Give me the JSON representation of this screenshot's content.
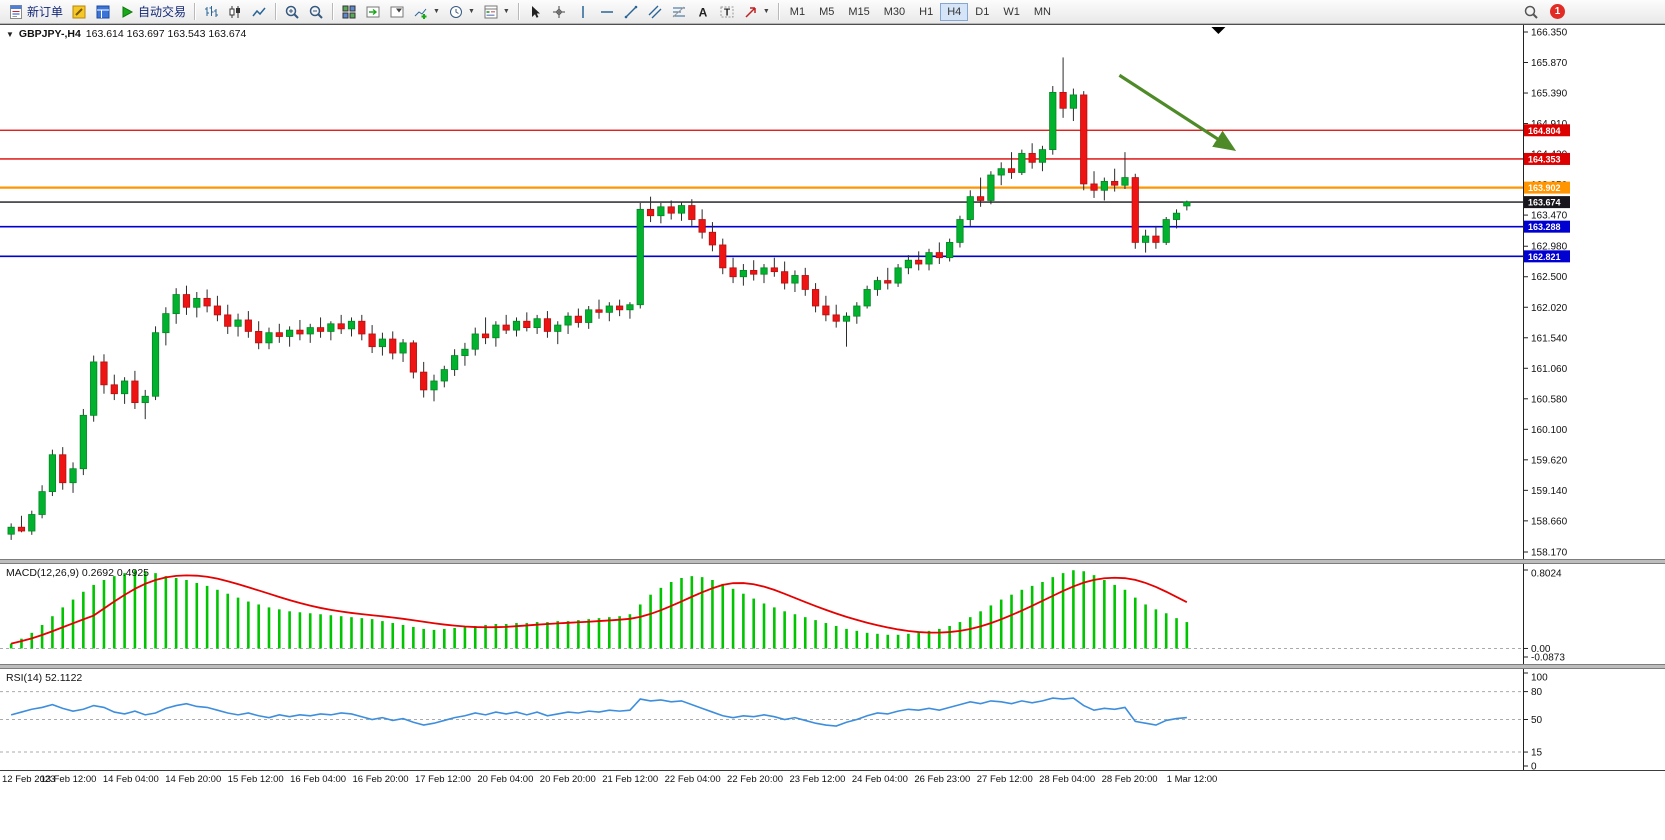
{
  "toolbar": {
    "new_order_label": "新订单",
    "auto_trading_label": "自动交易",
    "timeframes": [
      "M1",
      "M5",
      "M15",
      "M30",
      "H1",
      "H4",
      "D1",
      "W1",
      "MN"
    ],
    "active_timeframe": "H4",
    "notification_count": "1",
    "items": [
      {
        "type": "labelButton",
        "name": "new-order-button",
        "icon": "new-order",
        "label_key": "new_order_label"
      },
      {
        "type": "iconButton",
        "name": "metaeditor-button",
        "icon": "metaeditor"
      },
      {
        "type": "iconButton",
        "name": "market-watch-button",
        "icon": "terminal"
      },
      {
        "type": "labelButton",
        "name": "auto-trading-button",
        "icon": "autotrading",
        "label_key": "auto_trading_label"
      },
      {
        "type": "separator"
      },
      {
        "type": "iconButton",
        "name": "bar-chart-mode-button",
        "icon": "bar-chart"
      },
      {
        "type": "iconButton",
        "name": "candlestick-mode-button",
        "icon": "candlestick"
      },
      {
        "type": "iconButton",
        "name": "line-chart-mode-button",
        "icon": "line-chart"
      },
      {
        "type": "separator"
      },
      {
        "type": "iconButton",
        "name": "zoom-in-button",
        "icon": "zoom-in"
      },
      {
        "type": "iconButton",
        "name": "zoom-out-button",
        "icon": "zoom-out"
      },
      {
        "type": "separator"
      },
      {
        "type": "iconButton",
        "name": "tile-windows-button",
        "icon": "tile-windows"
      },
      {
        "type": "iconButton",
        "name": "auto-scroll-button",
        "icon": "auto-scroll"
      },
      {
        "type": "iconButton",
        "name": "chart-shift-button",
        "icon": "chart-shift"
      },
      {
        "type": "dropdownButton",
        "name": "indicators-dropdown",
        "icon": "indicators"
      },
      {
        "type": "dropdownButton",
        "name": "periods-dropdown",
        "icon": "periods"
      },
      {
        "type": "dropdownButton",
        "name": "templates-dropdown",
        "icon": "templates"
      },
      {
        "type": "separator"
      },
      {
        "type": "iconButton",
        "name": "cursor-tool-button",
        "icon": "cursor"
      },
      {
        "type": "iconButton",
        "name": "crosshair-tool-button",
        "icon": "crosshair"
      },
      {
        "type": "iconButton",
        "name": "vertical-line-tool-button",
        "icon": "vline"
      },
      {
        "type": "iconButton",
        "name": "horizontal-line-tool-button",
        "icon": "hline"
      },
      {
        "type": "iconButton",
        "name": "trendline-tool-button",
        "icon": "trendline"
      },
      {
        "type": "iconButton",
        "name": "channel-tool-button",
        "icon": "channel"
      },
      {
        "type": "iconButton",
        "name": "fibonacci-tool-button",
        "icon": "fibonacci"
      },
      {
        "type": "iconButton",
        "name": "text-tool-button",
        "icon": "text"
      },
      {
        "type": "iconButton",
        "name": "label-tool-button",
        "icon": "label"
      },
      {
        "type": "dropdownButton",
        "name": "arrows-dropdown",
        "icon": "arrow-tool"
      },
      {
        "type": "separator"
      },
      {
        "type": "timeframes"
      }
    ]
  },
  "chart": {
    "collapse_icon": "▼",
    "symbol_label": "GBPJPY-,H4",
    "ohlc_values": "163.614 163.697 163.543 163.674",
    "open": "163.614",
    "high": "163.697",
    "low": "163.543",
    "close": "163.674"
  },
  "macd": {
    "label": "MACD(12,26,9) 0.2692 0.4925"
  },
  "rsi": {
    "label": "RSI(14) 52.1122"
  },
  "chart_data": {
    "type": "candlestick",
    "symbol": "GBPJPY-",
    "timeframe": "H4",
    "y_min": 158.17,
    "y_max": 166.35,
    "y_ticks": [
      166.35,
      165.87,
      165.39,
      164.91,
      164.43,
      163.95,
      163.47,
      162.98,
      162.5,
      162.02,
      161.54,
      161.06,
      160.58,
      160.1,
      159.62,
      159.14,
      158.66,
      158.17
    ],
    "x_labels": [
      "12 Feb 2023",
      "13 Feb 12:00",
      "14 Feb 04:00",
      "14 Feb 20:00",
      "15 Feb 12:00",
      "16 Feb 04:00",
      "16 Feb 20:00",
      "17 Feb 12:00",
      "20 Feb 04:00",
      "20 Feb 20:00",
      "21 Feb 12:00",
      "22 Feb 04:00",
      "22 Feb 20:00",
      "23 Feb 12:00",
      "24 Feb 04:00",
      "26 Feb 23:00",
      "27 Feb 12:00",
      "28 Feb 04:00",
      "28 Feb 20:00",
      "1 Mar 12:00"
    ],
    "h_lines": [
      {
        "price": 164.804,
        "label": "164.804",
        "color": "#DD0000",
        "width": 1.3
      },
      {
        "price": 164.353,
        "label": "164.353",
        "color": "#DD0000",
        "width": 1.3
      },
      {
        "price": 163.902,
        "label": "163.902",
        "color": "#FF9500",
        "width": 2.2
      },
      {
        "price": 163.288,
        "label": "163.288",
        "color": "#0000D0",
        "width": 1.6
      },
      {
        "price": 162.821,
        "label": "162.821",
        "color": "#0000D0",
        "width": 1.6
      }
    ],
    "current_price": {
      "price": 163.674,
      "label": "163.674",
      "color": "#16161c"
    },
    "arrow": {
      "x1_frac": 0.735,
      "price1": 165.67,
      "x2_frac": 0.809,
      "price2": 164.52,
      "color": "#4E8B28"
    },
    "shift_marker_frac": 0.8,
    "colors": {
      "up": "#00B22D",
      "up_border": "#008721",
      "down": "#EE1414",
      "down_border": "#B80E0E",
      "wick": "#2b2b2b",
      "macd_histogram": "#00C400",
      "macd_signal": "#E60000",
      "rsi_line": "#3E8EDE",
      "level_dash": "#ABABAB"
    },
    "candles": [
      [
        158.45,
        158.62,
        158.36,
        158.56
      ],
      [
        158.56,
        158.74,
        158.48,
        158.5
      ],
      [
        158.5,
        158.82,
        158.44,
        158.76
      ],
      [
        158.76,
        159.22,
        158.7,
        159.12
      ],
      [
        159.12,
        159.78,
        159.05,
        159.7
      ],
      [
        159.7,
        159.82,
        159.15,
        159.26
      ],
      [
        159.26,
        159.58,
        159.1,
        159.48
      ],
      [
        159.48,
        160.42,
        159.38,
        160.32
      ],
      [
        160.32,
        161.26,
        160.22,
        161.16
      ],
      [
        161.16,
        161.28,
        160.66,
        160.8
      ],
      [
        160.8,
        160.96,
        160.56,
        160.66
      ],
      [
        160.66,
        160.92,
        160.5,
        160.86
      ],
      [
        160.86,
        161.02,
        160.42,
        160.52
      ],
      [
        160.52,
        160.72,
        160.26,
        160.62
      ],
      [
        160.62,
        161.72,
        160.56,
        161.62
      ],
      [
        161.62,
        162.02,
        161.42,
        161.92
      ],
      [
        161.92,
        162.32,
        161.76,
        162.22
      ],
      [
        162.22,
        162.36,
        161.9,
        162.02
      ],
      [
        162.02,
        162.26,
        161.86,
        162.16
      ],
      [
        162.16,
        162.3,
        161.94,
        162.04
      ],
      [
        162.04,
        162.2,
        161.8,
        161.9
      ],
      [
        161.9,
        162.06,
        161.6,
        161.72
      ],
      [
        161.72,
        161.92,
        161.56,
        161.82
      ],
      [
        161.82,
        161.96,
        161.54,
        161.64
      ],
      [
        161.64,
        161.8,
        161.36,
        161.46
      ],
      [
        161.46,
        161.7,
        161.36,
        161.62
      ],
      [
        161.62,
        161.76,
        161.46,
        161.56
      ],
      [
        161.56,
        161.72,
        161.4,
        161.66
      ],
      [
        161.66,
        161.82,
        161.5,
        161.6
      ],
      [
        161.6,
        161.76,
        161.46,
        161.7
      ],
      [
        161.7,
        161.86,
        161.54,
        161.64
      ],
      [
        161.64,
        161.8,
        161.5,
        161.76
      ],
      [
        161.76,
        161.9,
        161.6,
        161.68
      ],
      [
        161.68,
        161.86,
        161.56,
        161.8
      ],
      [
        161.8,
        161.9,
        161.5,
        161.6
      ],
      [
        161.6,
        161.74,
        161.3,
        161.4
      ],
      [
        161.4,
        161.62,
        161.26,
        161.52
      ],
      [
        161.52,
        161.64,
        161.2,
        161.3
      ],
      [
        161.3,
        161.52,
        161.16,
        161.46
      ],
      [
        161.46,
        161.5,
        160.9,
        161.0
      ],
      [
        161.0,
        161.16,
        160.6,
        160.72
      ],
      [
        160.72,
        160.96,
        160.54,
        160.86
      ],
      [
        160.86,
        161.1,
        160.76,
        161.04
      ],
      [
        161.04,
        161.36,
        160.94,
        161.26
      ],
      [
        161.26,
        161.46,
        161.1,
        161.36
      ],
      [
        161.36,
        161.7,
        161.26,
        161.6
      ],
      [
        161.6,
        161.86,
        161.44,
        161.54
      ],
      [
        161.54,
        161.8,
        161.4,
        161.74
      ],
      [
        161.74,
        161.9,
        161.6,
        161.66
      ],
      [
        161.66,
        161.86,
        161.56,
        161.8
      ],
      [
        161.8,
        161.94,
        161.64,
        161.7
      ],
      [
        161.7,
        161.9,
        161.6,
        161.84
      ],
      [
        161.84,
        161.96,
        161.54,
        161.64
      ],
      [
        161.64,
        161.8,
        161.44,
        161.74
      ],
      [
        161.74,
        161.94,
        161.6,
        161.88
      ],
      [
        161.88,
        162.0,
        161.7,
        161.78
      ],
      [
        161.78,
        162.04,
        161.68,
        161.98
      ],
      [
        161.98,
        162.14,
        161.84,
        161.94
      ],
      [
        161.94,
        162.1,
        161.8,
        162.04
      ],
      [
        162.04,
        162.14,
        161.88,
        161.98
      ],
      [
        161.98,
        162.1,
        161.84,
        162.06
      ],
      [
        162.06,
        163.66,
        162.0,
        163.56
      ],
      [
        163.56,
        163.76,
        163.36,
        163.46
      ],
      [
        163.46,
        163.66,
        163.34,
        163.6
      ],
      [
        163.6,
        163.7,
        163.4,
        163.5
      ],
      [
        163.5,
        163.68,
        163.38,
        163.62
      ],
      [
        163.62,
        163.72,
        163.3,
        163.4
      ],
      [
        163.4,
        163.56,
        163.1,
        163.2
      ],
      [
        163.2,
        163.36,
        162.9,
        163.0
      ],
      [
        163.0,
        163.1,
        162.54,
        162.64
      ],
      [
        162.64,
        162.8,
        162.4,
        162.5
      ],
      [
        162.5,
        162.7,
        162.36,
        162.6
      ],
      [
        162.6,
        162.76,
        162.44,
        162.54
      ],
      [
        162.54,
        162.7,
        162.4,
        162.64
      ],
      [
        162.64,
        162.8,
        162.5,
        162.58
      ],
      [
        162.58,
        162.74,
        162.3,
        162.4
      ],
      [
        162.4,
        162.6,
        162.26,
        162.52
      ],
      [
        162.52,
        162.64,
        162.2,
        162.3
      ],
      [
        162.3,
        162.4,
        161.94,
        162.04
      ],
      [
        162.04,
        162.2,
        161.8,
        161.9
      ],
      [
        161.9,
        162.06,
        161.7,
        161.8
      ],
      [
        161.8,
        161.94,
        161.4,
        161.88
      ],
      [
        161.88,
        162.1,
        161.76,
        162.04
      ],
      [
        162.04,
        162.36,
        162.0,
        162.3
      ],
      [
        162.3,
        162.5,
        162.2,
        162.44
      ],
      [
        162.44,
        162.64,
        162.3,
        162.4
      ],
      [
        162.4,
        162.7,
        162.34,
        162.64
      ],
      [
        162.64,
        162.84,
        162.54,
        162.76
      ],
      [
        162.76,
        162.9,
        162.6,
        162.7
      ],
      [
        162.7,
        162.94,
        162.6,
        162.88
      ],
      [
        162.88,
        163.04,
        162.7,
        162.8
      ],
      [
        162.8,
        163.1,
        162.74,
        163.04
      ],
      [
        163.04,
        163.46,
        162.96,
        163.4
      ],
      [
        163.4,
        163.86,
        163.3,
        163.76
      ],
      [
        163.76,
        164.06,
        163.6,
        163.7
      ],
      [
        163.7,
        164.16,
        163.64,
        164.1
      ],
      [
        164.1,
        164.3,
        163.94,
        164.2
      ],
      [
        164.2,
        164.46,
        164.04,
        164.14
      ],
      [
        164.14,
        164.5,
        164.1,
        164.44
      ],
      [
        164.44,
        164.6,
        164.2,
        164.3
      ],
      [
        164.3,
        164.56,
        164.16,
        164.5
      ],
      [
        164.5,
        165.5,
        164.42,
        165.4
      ],
      [
        165.4,
        165.95,
        165.0,
        165.15
      ],
      [
        165.15,
        165.46,
        164.95,
        165.36
      ],
      [
        165.36,
        165.42,
        163.86,
        163.96
      ],
      [
        163.96,
        164.16,
        163.74,
        163.86
      ],
      [
        163.86,
        164.06,
        163.7,
        164.0
      ],
      [
        164.0,
        164.2,
        163.84,
        163.94
      ],
      [
        163.94,
        164.46,
        163.88,
        164.06
      ],
      [
        164.06,
        164.12,
        162.94,
        163.04
      ],
      [
        163.04,
        163.24,
        162.88,
        163.14
      ],
      [
        163.14,
        163.3,
        162.94,
        163.04
      ],
      [
        163.04,
        163.44,
        163.0,
        163.4
      ],
      [
        163.4,
        163.56,
        163.26,
        163.5
      ],
      [
        163.614,
        163.697,
        163.543,
        163.674
      ]
    ],
    "macd": {
      "range": [
        -0.0873,
        0.8024
      ],
      "scale_labels": [
        "0.8024",
        "0.00",
        "-0.0873"
      ],
      "values": [
        0.05,
        0.1,
        0.16,
        0.24,
        0.33,
        0.42,
        0.5,
        0.58,
        0.65,
        0.7,
        0.74,
        0.77,
        0.8,
        0.79,
        0.77,
        0.74,
        0.72,
        0.7,
        0.67,
        0.64,
        0.6,
        0.56,
        0.52,
        0.48,
        0.45,
        0.42,
        0.4,
        0.38,
        0.37,
        0.36,
        0.35,
        0.34,
        0.33,
        0.32,
        0.31,
        0.3,
        0.28,
        0.26,
        0.24,
        0.22,
        0.2,
        0.19,
        0.2,
        0.21,
        0.22,
        0.23,
        0.24,
        0.25,
        0.25,
        0.26,
        0.26,
        0.27,
        0.27,
        0.28,
        0.28,
        0.29,
        0.3,
        0.31,
        0.32,
        0.33,
        0.35,
        0.45,
        0.55,
        0.62,
        0.68,
        0.72,
        0.74,
        0.73,
        0.7,
        0.66,
        0.61,
        0.56,
        0.51,
        0.46,
        0.42,
        0.38,
        0.35,
        0.32,
        0.29,
        0.26,
        0.23,
        0.2,
        0.18,
        0.16,
        0.15,
        0.14,
        0.14,
        0.15,
        0.16,
        0.18,
        0.2,
        0.23,
        0.27,
        0.32,
        0.38,
        0.44,
        0.5,
        0.55,
        0.6,
        0.64,
        0.68,
        0.73,
        0.77,
        0.8,
        0.79,
        0.75,
        0.7,
        0.65,
        0.6,
        0.52,
        0.45,
        0.4,
        0.36,
        0.31,
        0.27
      ]
    },
    "rsi": {
      "range": [
        0,
        100
      ],
      "levels": [
        80,
        50,
        15
      ],
      "scale_labels": [
        "100",
        "80",
        "50",
        "15",
        "0"
      ],
      "values": [
        55,
        58,
        61,
        63,
        66,
        62,
        59,
        61,
        65,
        63,
        58,
        56,
        59,
        55,
        57,
        62,
        65,
        67,
        64,
        63,
        60,
        57,
        55,
        57,
        54,
        52,
        55,
        53,
        55,
        54,
        56,
        55,
        57,
        56,
        53,
        50,
        52,
        49,
        51,
        47,
        44,
        46,
        49,
        52,
        54,
        57,
        55,
        58,
        56,
        58,
        55,
        58,
        54,
        56,
        58,
        57,
        59,
        58,
        60,
        59,
        60,
        72,
        70,
        71,
        69,
        70,
        66,
        62,
        58,
        54,
        52,
        54,
        53,
        55,
        53,
        50,
        52,
        49,
        46,
        44,
        43,
        47,
        50,
        54,
        57,
        56,
        59,
        61,
        60,
        62,
        60,
        63,
        66,
        69,
        67,
        70,
        69,
        67,
        70,
        68,
        70,
        73,
        72,
        73,
        65,
        60,
        62,
        61,
        63,
        48,
        46,
        44,
        49,
        51,
        52.11
      ]
    }
  }
}
